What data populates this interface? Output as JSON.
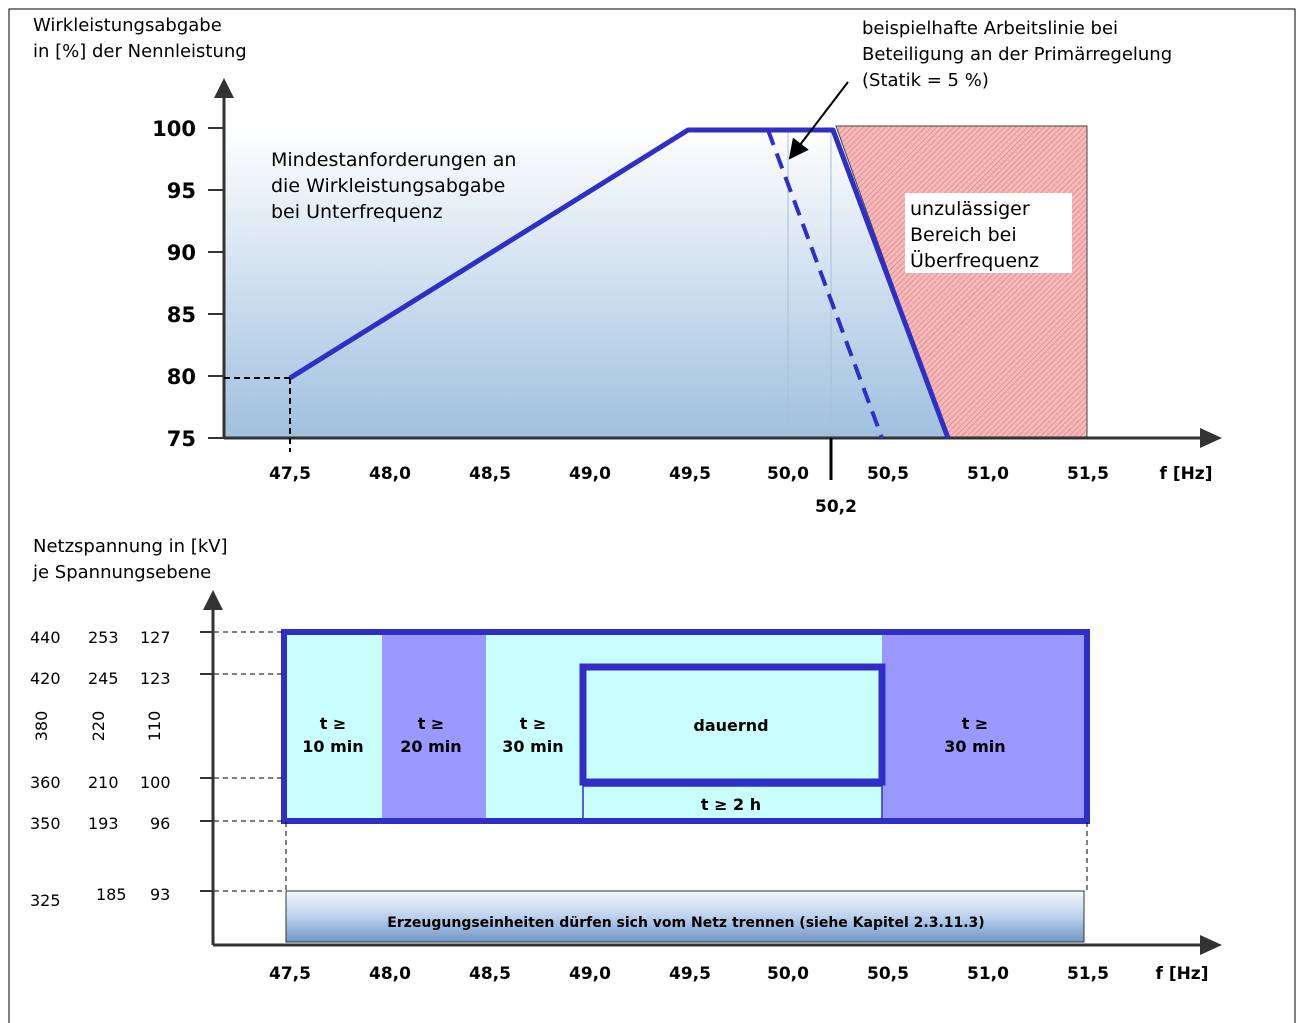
{
  "top": {
    "y_label_line1": "Wirkleistungsabgabe",
    "y_label_line2": "in [%] der Nennleistung",
    "y_ticks": [
      "100",
      "95",
      "90",
      "85",
      "80",
      "75"
    ],
    "x_ticks": [
      "47,5",
      "48,0",
      "48,5",
      "49,0",
      "49,5",
      "50,0",
      "50,5",
      "51,0",
      "51,5"
    ],
    "x_unit": "f [Hz]",
    "marker_502": "50,2",
    "annotation_lines": [
      "beispielhafte Arbeitslinie bei",
      "Beteiligung an der Primärregelung",
      "(Statik = 5 %)"
    ],
    "min_req_lines": [
      "Mindestanforderungen an",
      "die Wirkleistungsabgabe",
      "bei Unterfrequenz"
    ],
    "forbidden_lines": [
      "unzulässiger",
      "Bereich bei",
      "Überfrequenz"
    ]
  },
  "bottom": {
    "y_label_line1": "Netzspannung in [kV]",
    "y_label_line2": "je Spannungsebene",
    "volt_rows": [
      [
        "440",
        "253",
        "127"
      ],
      [
        "420",
        "245",
        "123"
      ],
      [
        "380",
        "220",
        "110"
      ],
      [
        "360",
        "210",
        "100"
      ],
      [
        "350",
        "193",
        "96"
      ],
      [
        "325",
        "185",
        "93"
      ]
    ],
    "x_ticks": [
      "47,5",
      "48,0",
      "48,5",
      "49,0",
      "49,5",
      "50,0",
      "50,5",
      "51,0",
      "51,5"
    ],
    "x_unit": "f [Hz]",
    "zone_10_l1": "t ≥",
    "zone_10_l2": "10 min",
    "zone_20_l1": "t ≥",
    "zone_20_l2": "20 min",
    "zone_30a_l1": "t ≥",
    "zone_30a_l2": "30 min",
    "zone_cont": "dauernd",
    "zone_2h": "t ≥ 2 h",
    "zone_30b_l1": "t ≥",
    "zone_30b_l2": "30 min",
    "disconnect_text": "Erzeugungseinheiten dürfen sich vom Netz trennen (siehe Kapitel 2.3.11.3)"
  },
  "colors": {
    "line_blue": "#2f2fc8",
    "light_cyan": "#c9ffff",
    "lavender": "#9999ff",
    "hatch_red": "#f2a8a8"
  }
}
